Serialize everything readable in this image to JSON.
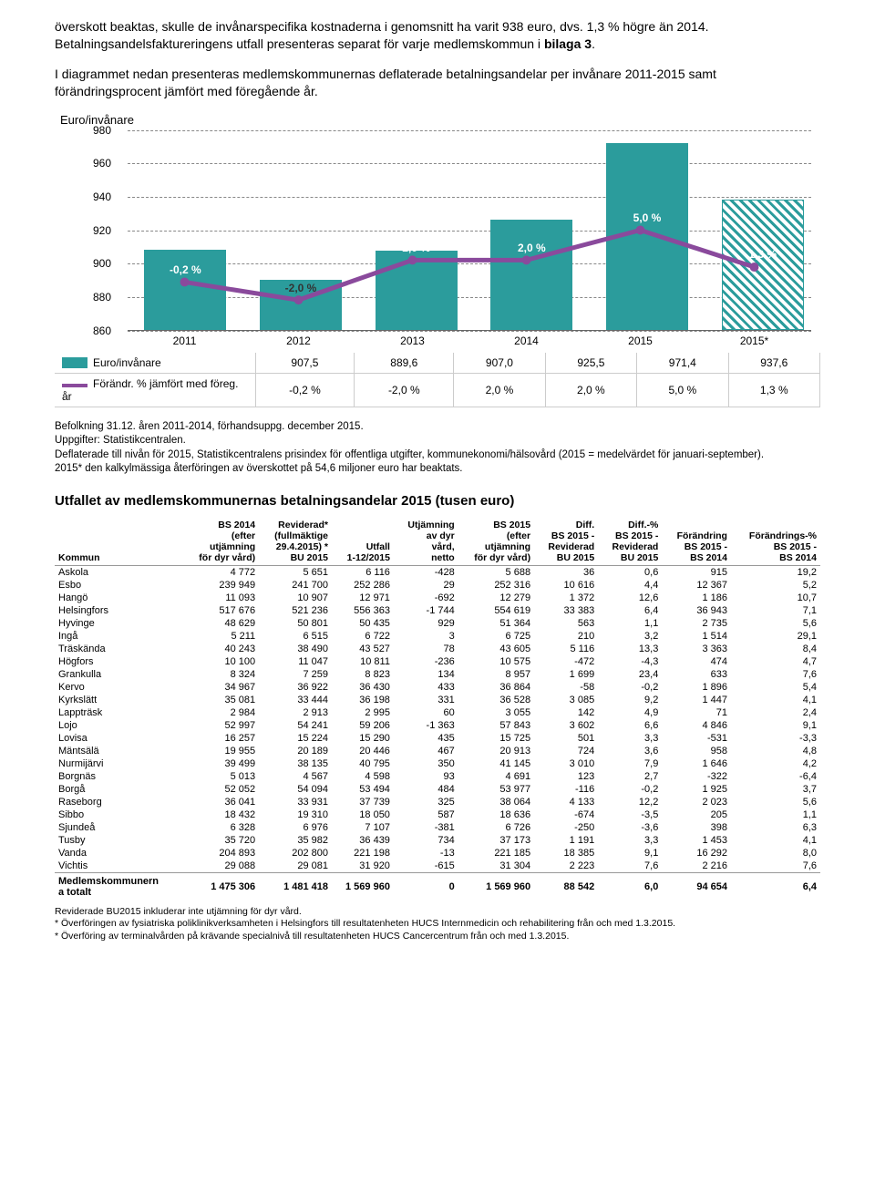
{
  "intro_paragraphs": [
    "överskott beaktas, skulle de invånarspecifika kostnaderna i genomsnitt ha varit 938 euro, dvs. 1,3 % högre än 2014. Betalningsandelsfaktureringens utfall presenteras separat för varje medlemskommun i <b>bilaga 3</b>.",
    "I diagrammet nedan presenteras medlemskommunernas deflaterade betalningsandelar per invånare 2011-2015 samt förändringsprocent jämfört med föregående år."
  ],
  "chart": {
    "y_label": "Euro/invånare",
    "y_min": 860,
    "y_max": 980,
    "y_step": 20,
    "categories": [
      "2011",
      "2012",
      "2013",
      "2014",
      "2015",
      "2015*"
    ],
    "bar_values": [
      907.5,
      889.6,
      907.0,
      925.5,
      971.4,
      937.6
    ],
    "bar_hatched": [
      false,
      false,
      false,
      false,
      false,
      true
    ],
    "line_values_pct": [
      -0.2,
      -2.0,
      2.0,
      2.0,
      5.0,
      1.3
    ],
    "line_labels": [
      "-0,2 %",
      "-2,0 %",
      "2,0 %",
      "2,0 %",
      "5,0 %",
      "1,3 %"
    ],
    "bar_color": "#2b9c9c",
    "line_color": "#8a4a9c",
    "legend_rows": [
      {
        "swatch": "bar",
        "label": "Euro/invånare",
        "vals": [
          "907,5",
          "889,6",
          "907,0",
          "925,5",
          "971,4",
          "937,6"
        ]
      },
      {
        "swatch": "line",
        "label": "Förändr. % jämfört med föreg. år",
        "vals": [
          "-0,2 %",
          "-2,0 %",
          "2,0 %",
          "2,0 %",
          "5,0 %",
          "1,3 %"
        ]
      }
    ]
  },
  "caption_lines": [
    "Befolkning 31.12. åren 2011-2014, förhandsuppg. december 2015.",
    "Uppgifter: Statistikcentralen.",
    "Deflaterade till nivån för 2015, Statistikcentralens prisindex för offentliga utgifter, kommunekonomi/hälsovård  (2015 = medelvärdet för januari-september).",
    "2015* den kalkylmässiga återföringen av överskottet på 54,6 miljoner euro har beaktats."
  ],
  "table_title": "Utfallet av medlemskommunernas betalningsandelar 2015 (tusen euro)",
  "table": {
    "headers": [
      "Kommun",
      "BS 2014\n(efter\nutjämning\nför dyr vård)",
      "Reviderad*\n(fullmäktige\n29.4.2015) *\nBU 2015",
      "Utfall\n1-12/2015",
      "Utjämning\nav dyr\nvård,\nnetto",
      "BS 2015\n(efter\nutjämning\nför dyr vård)",
      "Diff.\nBS 2015 -\nReviderad\nBU 2015",
      "Diff.-%\nBS 2015 -\nReviderad\nBU 2015",
      "Förändring\nBS 2015 -\nBS 2014",
      "Förändrings-%\nBS 2015 -\nBS 2014"
    ],
    "rows": [
      [
        "Askola",
        "4 772",
        "5 651",
        "6 116",
        "-428",
        "5 688",
        "36",
        "0,6",
        "915",
        "19,2"
      ],
      [
        "Esbo",
        "239 949",
        "241 700",
        "252 286",
        "29",
        "252 316",
        "10 616",
        "4,4",
        "12 367",
        "5,2"
      ],
      [
        "Hangö",
        "11 093",
        "10 907",
        "12 971",
        "-692",
        "12 279",
        "1 372",
        "12,6",
        "1 186",
        "10,7"
      ],
      [
        "Helsingfors",
        "517 676",
        "521 236",
        "556 363",
        "-1 744",
        "554 619",
        "33 383",
        "6,4",
        "36 943",
        "7,1"
      ],
      [
        "Hyvinge",
        "48 629",
        "50 801",
        "50 435",
        "929",
        "51 364",
        "563",
        "1,1",
        "2 735",
        "5,6"
      ],
      [
        "Ingå",
        "5 211",
        "6 515",
        "6 722",
        "3",
        "6 725",
        "210",
        "3,2",
        "1 514",
        "29,1"
      ],
      [
        "Träskända",
        "40 243",
        "38 490",
        "43 527",
        "78",
        "43 605",
        "5 116",
        "13,3",
        "3 363",
        "8,4"
      ],
      [
        "Högfors",
        "10 100",
        "11 047",
        "10 811",
        "-236",
        "10 575",
        "-472",
        "-4,3",
        "474",
        "4,7"
      ],
      [
        "Grankulla",
        "8 324",
        "7 259",
        "8 823",
        "134",
        "8 957",
        "1 699",
        "23,4",
        "633",
        "7,6"
      ],
      [
        "Kervo",
        "34 967",
        "36 922",
        "36 430",
        "433",
        "36 864",
        "-58",
        "-0,2",
        "1 896",
        "5,4"
      ],
      [
        "Kyrkslätt",
        "35 081",
        "33 444",
        "36 198",
        "331",
        "36 528",
        "3 085",
        "9,2",
        "1 447",
        "4,1"
      ],
      [
        "Lappträsk",
        "2 984",
        "2 913",
        "2 995",
        "60",
        "3 055",
        "142",
        "4,9",
        "71",
        "2,4"
      ],
      [
        "Lojo",
        "52 997",
        "54 241",
        "59 206",
        "-1 363",
        "57 843",
        "3 602",
        "6,6",
        "4 846",
        "9,1"
      ],
      [
        "Lovisa",
        "16 257",
        "15 224",
        "15 290",
        "435",
        "15 725",
        "501",
        "3,3",
        "-531",
        "-3,3"
      ],
      [
        "Mäntsälä",
        "19 955",
        "20 189",
        "20 446",
        "467",
        "20 913",
        "724",
        "3,6",
        "958",
        "4,8"
      ],
      [
        "Nurmijärvi",
        "39 499",
        "38 135",
        "40 795",
        "350",
        "41 145",
        "3 010",
        "7,9",
        "1 646",
        "4,2"
      ],
      [
        "Borgnäs",
        "5 013",
        "4 567",
        "4 598",
        "93",
        "4 691",
        "123",
        "2,7",
        "-322",
        "-6,4"
      ],
      [
        "Borgå",
        "52 052",
        "54 094",
        "53 494",
        "484",
        "53 977",
        "-116",
        "-0,2",
        "1 925",
        "3,7"
      ],
      [
        "Raseborg",
        "36 041",
        "33 931",
        "37 739",
        "325",
        "38 064",
        "4 133",
        "12,2",
        "2 023",
        "5,6"
      ],
      [
        "Sibbo",
        "18 432",
        "19 310",
        "18 050",
        "587",
        "18 636",
        "-674",
        "-3,5",
        "205",
        "1,1"
      ],
      [
        "Sjundeå",
        "6 328",
        "6 976",
        "7 107",
        "-381",
        "6 726",
        "-250",
        "-3,6",
        "398",
        "6,3"
      ],
      [
        "Tusby",
        "35 720",
        "35 982",
        "36 439",
        "734",
        "37 173",
        "1 191",
        "3,3",
        "1 453",
        "4,1"
      ],
      [
        "Vanda",
        "204 893",
        "202 800",
        "221 198",
        "-13",
        "221 185",
        "18 385",
        "9,1",
        "16 292",
        "8,0"
      ],
      [
        "Vichtis",
        "29 088",
        "29 081",
        "31 920",
        "-615",
        "31 304",
        "2 223",
        "7,6",
        "2 216",
        "7,6"
      ]
    ],
    "total_row": [
      "Medlemskommunern\na totalt",
      "1 475 306",
      "1 481 418",
      "1 569 960",
      "0",
      "1 569 960",
      "88 542",
      "6,0",
      "94 654",
      "6,4"
    ]
  },
  "footnotes": [
    "Reviderade BU2015 inkluderar inte utjämning för dyr vård.",
    "* Överföringen av fysiatriska poliklinikverksamheten i Helsingfors till resultatenheten HUCS Internmedicin och rehabilitering från och med 1.3.2015.",
    "* Överföring av terminalvården på krävande specialnivå till resultatenheten HUCS Cancercentrum från och med 1.3.2015."
  ]
}
